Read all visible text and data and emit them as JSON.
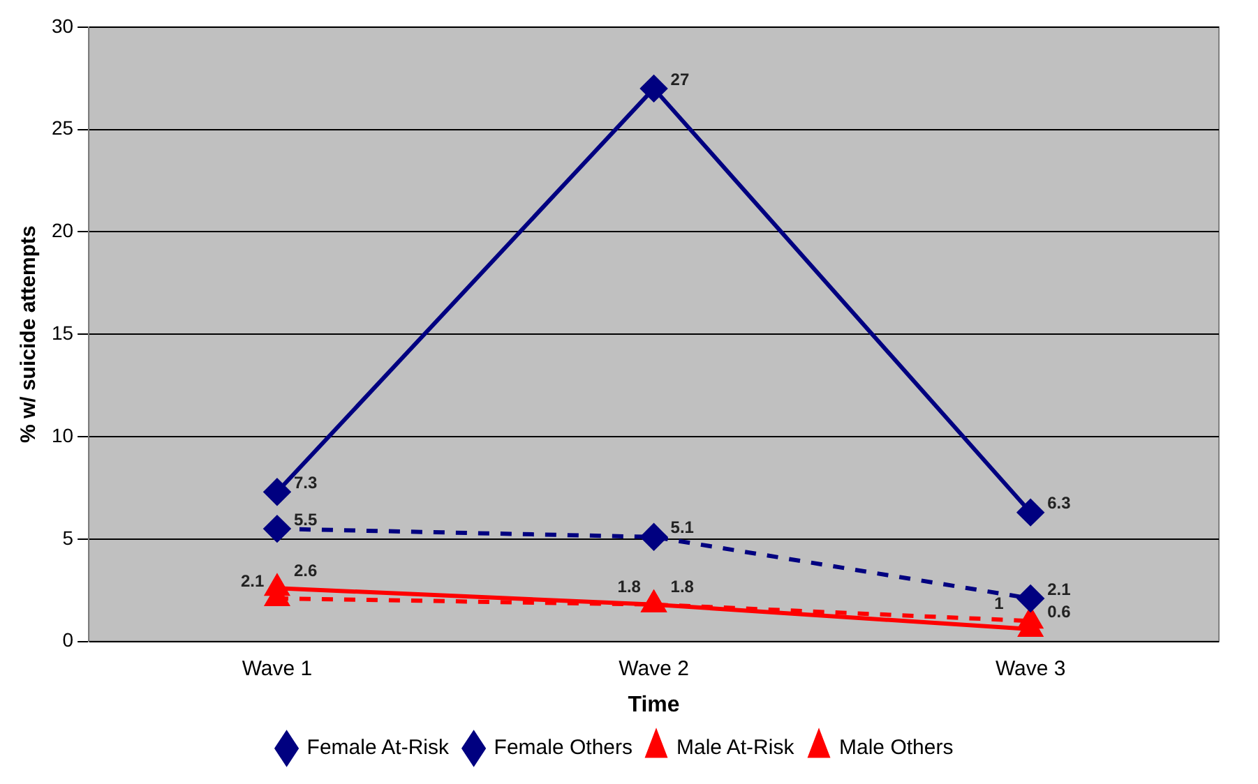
{
  "chart_data": {
    "type": "line",
    "xlabel": "Time",
    "ylabel": "% w/ suicide attempts",
    "categories": [
      "Wave 1",
      "Wave 2",
      "Wave 3"
    ],
    "series": [
      {
        "name": "Female At-Risk",
        "color": "#000080",
        "values": [
          7.3,
          27,
          6.3
        ],
        "marker": "diamond",
        "line_style": "solid"
      },
      {
        "name": "Female Others",
        "color": "#000080",
        "values": [
          5.5,
          5.1,
          2.1
        ],
        "marker": "diamond",
        "line_style": "dashed"
      },
      {
        "name": "Male At-Risk",
        "color": "#ff0000",
        "values": [
          2.6,
          1.8,
          0.6
        ],
        "marker": "triangle",
        "line_style": "solid"
      },
      {
        "name": "Male Others",
        "color": "#ff0000",
        "values": [
          2.1,
          1.8,
          1
        ],
        "marker": "triangle",
        "line_style": "dashed"
      }
    ],
    "ylim": [
      0,
      30
    ],
    "yticks": [
      0,
      5,
      10,
      15,
      20,
      25,
      30
    ],
    "grid": "y",
    "legend": "bottom",
    "data_labels": true
  }
}
